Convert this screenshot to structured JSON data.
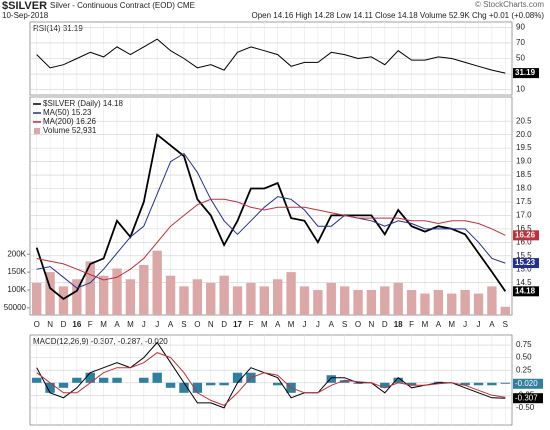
{
  "header": {
    "symbol": "$SILVER",
    "name": "Silver - Continuous Contract (EOD) CME",
    "date": "10-Sep-2018",
    "quote": "Open 14.16 High 14.28 Low 14.11 Close 14.18 Volume 52.9K Chg +0.01 (+0.08%)",
    "credit": "© StockCharts.com"
  },
  "chart_data": [
    {
      "type": "line",
      "title": "RSI(14) 31.19",
      "ylim": [
        3,
        97
      ],
      "yticks": [
        10,
        30,
        50,
        70,
        90
      ],
      "grid": true,
      "series": [
        {
          "name": "RSI(14)",
          "color": "#000000",
          "values": [
            55,
            38,
            42,
            50,
            58,
            52,
            65,
            55,
            65,
            75,
            60,
            50,
            38,
            42,
            35,
            58,
            65,
            60,
            55,
            40,
            45,
            45,
            58,
            55,
            50,
            52,
            42,
            60,
            48,
            48,
            52,
            50,
            45,
            40,
            35,
            31.19
          ]
        }
      ]
    },
    {
      "type": "line",
      "categories": [
        "O",
        "N",
        "D",
        "16",
        "F",
        "M",
        "A",
        "M",
        "J",
        "J",
        "A",
        "S",
        "O",
        "N",
        "D",
        "17",
        "F",
        "M",
        "A",
        "M",
        "J",
        "J",
        "A",
        "S",
        "O",
        "N",
        "D",
        "18",
        "F",
        "M",
        "A",
        "M",
        "J",
        "J",
        "A",
        "S"
      ],
      "ylim": [
        13.3,
        21.4
      ],
      "yticks": [
        14.5,
        {
          "value": 15,
          "label": "15.0"
        },
        15.5,
        {
          "value": 16,
          "label": "16.0"
        },
        16.5,
        {
          "value": 17,
          "label": "17.0"
        },
        17.5,
        {
          "value": 18,
          "label": "18.0"
        },
        18.5,
        {
          "value": 19,
          "label": "19.0"
        },
        19.5,
        {
          "value": 20,
          "label": "20.0"
        },
        20.5
      ],
      "y2lim": [
        30000,
        640000
      ],
      "y2ticks": [
        {
          "value": 50000,
          "label": "50000"
        },
        {
          "value": 100000,
          "label": "100K"
        },
        {
          "value": 150000,
          "label": "150K"
        },
        {
          "value": 200000,
          "label": "200K"
        }
      ],
      "grid": true,
      "series": [
        {
          "name": "$SILVER (Daily) 14.18",
          "color": "#000000",
          "values": [
            15.8,
            14.3,
            13.9,
            14.2,
            15.2,
            15.4,
            16.8,
            16.2,
            17.5,
            20.0,
            19.6,
            19.2,
            17.6,
            17.0,
            15.9,
            16.8,
            18.0,
            18.0,
            18.2,
            16.9,
            16.8,
            16.0,
            17.0,
            17.0,
            17.0,
            17.0,
            16.3,
            17.2,
            16.6,
            16.4,
            16.6,
            16.5,
            16.3,
            15.6,
            14.9,
            14.18
          ]
        },
        {
          "name": "MA(50) 15.23",
          "color": "#23308f",
          "values": [
            15.0,
            15.1,
            14.7,
            14.3,
            14.5,
            15.0,
            15.6,
            16.2,
            16.6,
            17.8,
            19.0,
            19.3,
            18.6,
            17.6,
            16.8,
            16.3,
            16.8,
            17.3,
            17.7,
            17.6,
            17.2,
            16.6,
            16.6,
            17.0,
            16.9,
            16.8,
            16.6,
            16.8,
            16.7,
            16.5,
            16.5,
            16.5,
            16.5,
            16.0,
            15.4,
            15.23
          ]
        },
        {
          "name": "MA(200) 16.26",
          "color": "#c0303a",
          "values": [
            15.4,
            15.3,
            15.2,
            15.0,
            14.8,
            14.6,
            14.7,
            15.0,
            15.4,
            16.0,
            16.6,
            17.0,
            17.4,
            17.6,
            17.6,
            17.5,
            17.3,
            17.2,
            17.3,
            17.3,
            17.3,
            17.2,
            17.1,
            17.0,
            16.9,
            16.9,
            16.9,
            16.9,
            16.8,
            16.8,
            16.7,
            16.8,
            16.8,
            16.7,
            16.5,
            16.26
          ]
        },
        {
          "name": "Volume 52,931",
          "type": "bar",
          "axis": "y2",
          "color": "#dba7a7",
          "values": [
            120000,
            150000,
            110000,
            130000,
            180000,
            140000,
            160000,
            130000,
            170000,
            210000,
            140000,
            110000,
            130000,
            120000,
            140000,
            110000,
            120000,
            110000,
            130000,
            150000,
            110000,
            100000,
            120000,
            110000,
            100000,
            100000,
            110000,
            120000,
            100000,
            90000,
            100000,
            90000,
            100000,
            90000,
            110000,
            52931
          ]
        }
      ]
    },
    {
      "type": "line",
      "title": "MACD(12,26,9) -0.307, -0.287, -0.020",
      "ylim": [
        -0.84,
        0.95
      ],
      "yticks": [
        {
          "value": -0.5,
          "label": "-0.50"
        },
        -0.25,
        {
          "value": 0,
          "label": "0.00"
        },
        0.25,
        {
          "value": 0.5,
          "label": "0.50"
        },
        0.75
      ],
      "grid": true,
      "value_tags": [
        {
          "value": -0.02,
          "label": "-0.020"
        },
        {
          "value": -0.307,
          "label": "-0.307"
        }
      ],
      "series": [
        {
          "name": "Histogram",
          "type": "bar",
          "color": "#2f7f9f",
          "values": [
            0.1,
            -0.2,
            -0.1,
            0.1,
            0.2,
            0.1,
            0.1,
            0,
            0.1,
            0.2,
            -0.1,
            -0.2,
            -0.2,
            -0.05,
            -0.05,
            0.2,
            0.2,
            0,
            -0.05,
            -0.2,
            0,
            0,
            0.15,
            0.05,
            -0.02,
            0,
            -0.1,
            0.1,
            -0.05,
            0,
            0.02,
            0,
            -0.05,
            -0.05,
            -0.05,
            -0.02
          ]
        },
        {
          "name": "MACD",
          "color": "#000000",
          "values": [
            0.3,
            -0.2,
            -0.3,
            -0.1,
            0.2,
            0.3,
            0.4,
            0.3,
            0.5,
            0.8,
            0.4,
            0.0,
            -0.4,
            -0.4,
            -0.5,
            0.0,
            0.3,
            0.2,
            0.1,
            -0.3,
            -0.2,
            -0.2,
            0.1,
            0.1,
            0.0,
            0.0,
            -0.2,
            0.1,
            -0.1,
            -0.05,
            0.0,
            0.0,
            -0.1,
            -0.2,
            -0.3,
            -0.307
          ]
        },
        {
          "name": "Signal",
          "color": "#c0303a",
          "values": [
            0.2,
            0.0,
            -0.2,
            -0.2,
            0.0,
            0.2,
            0.3,
            0.3,
            0.4,
            0.6,
            0.5,
            0.2,
            -0.2,
            -0.35,
            -0.45,
            -0.2,
            0.1,
            0.2,
            0.15,
            -0.1,
            -0.2,
            -0.2,
            -0.05,
            0.05,
            0.02,
            0.0,
            -0.1,
            0.0,
            -0.05,
            -0.05,
            -0.02,
            0.0,
            -0.05,
            -0.15,
            -0.25,
            -0.287
          ]
        }
      ]
    }
  ]
}
